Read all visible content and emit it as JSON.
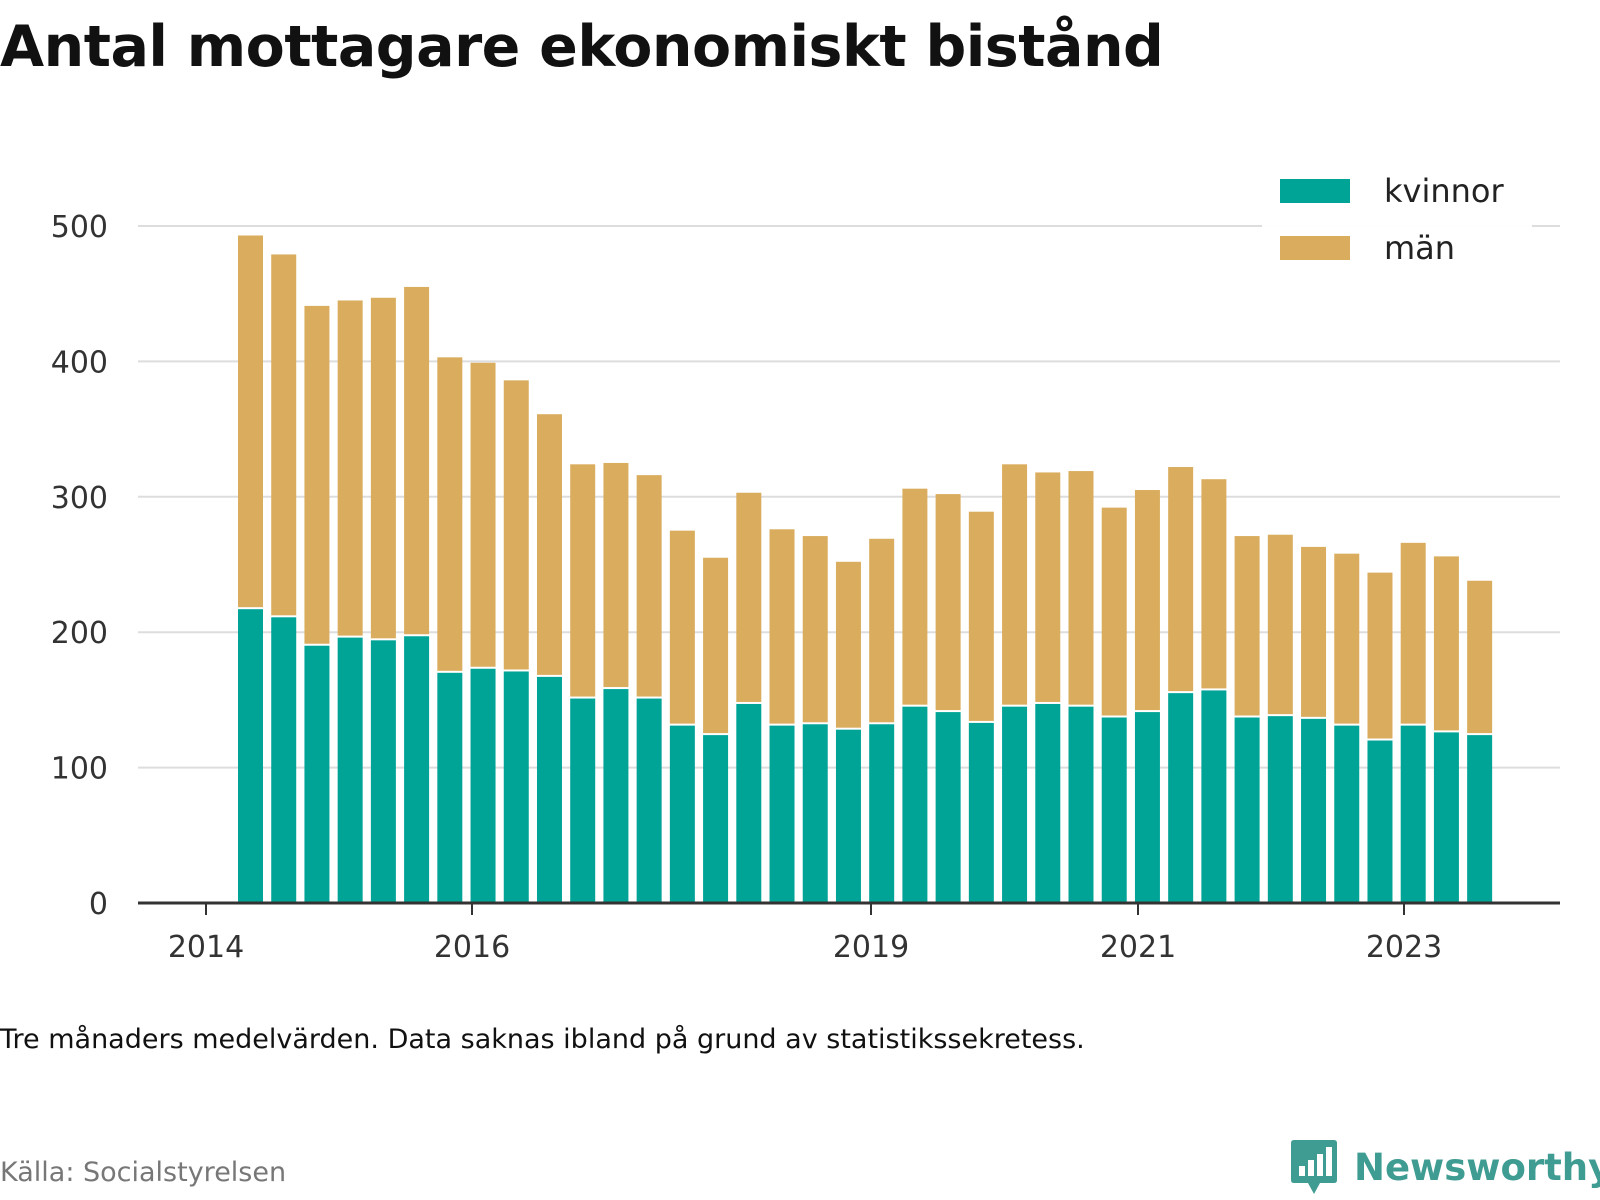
{
  "title": "Antal mottagare ekonomiskt bistånd",
  "note": "Tre månaders medelvärden. Data saknas ibland på grund av statistikssekretess.",
  "source": "Källa: Socialstyrelsen",
  "brand": {
    "name": "Newsworthy",
    "icon": "newsworthy-logo-icon",
    "color": "#3f9c92"
  },
  "chart_data": {
    "type": "bar",
    "stacked": true,
    "x_tick_labels": [
      "2014",
      "2016",
      "2019",
      "2021",
      "2023"
    ],
    "ylim": [
      0,
      500
    ],
    "y_ticks": [
      0,
      100,
      200,
      300,
      400,
      500
    ],
    "grid": true,
    "legend_position": "top-right",
    "categories": [
      "Q2 2014",
      "Q3 2014",
      "Q4 2014",
      "Q1 2015",
      "Q2 2015",
      "Q3 2015",
      "Q4 2015",
      "Q1 2016",
      "Q2 2016",
      "Q3 2016",
      "Q4 2016",
      "Q1 2017",
      "Q2 2017",
      "Q3 2017",
      "Q4 2017",
      "Q1 2018",
      "Q2 2018",
      "Q3 2018",
      "Q4 2018",
      "Q1 2019",
      "Q2 2019",
      "Q3 2019",
      "Q4 2019",
      "Q1 2020",
      "Q2 2020",
      "Q3 2020",
      "Q4 2020",
      "Q1 2021",
      "Q2 2021",
      "Q3 2021",
      "Q4 2021",
      "Q1 2022",
      "Q2 2022",
      "Q3 2022",
      "Q4 2022",
      "Q1 2023",
      "Q2 2023",
      "Q3 2023"
    ],
    "series": [
      {
        "name": "kvinnor",
        "color": "#00a497",
        "values": [
          217,
          211,
          190,
          196,
          194,
          197,
          170,
          173,
          171,
          167,
          151,
          158,
          151,
          131,
          124,
          147,
          131,
          132,
          128,
          132,
          145,
          141,
          133,
          145,
          147,
          145,
          137,
          141,
          155,
          157,
          137,
          138,
          136,
          131,
          120,
          131,
          126,
          124
        ]
      },
      {
        "name": "män",
        "color": "#daad5e",
        "values": [
          276,
          268,
          251,
          249,
          253,
          258,
          233,
          226,
          215,
          194,
          173,
          167,
          165,
          144,
          131,
          156,
          145,
          139,
          124,
          137,
          161,
          161,
          156,
          179,
          171,
          174,
          155,
          164,
          167,
          156,
          134,
          134,
          127,
          127,
          124,
          135,
          130,
          114
        ]
      }
    ]
  }
}
